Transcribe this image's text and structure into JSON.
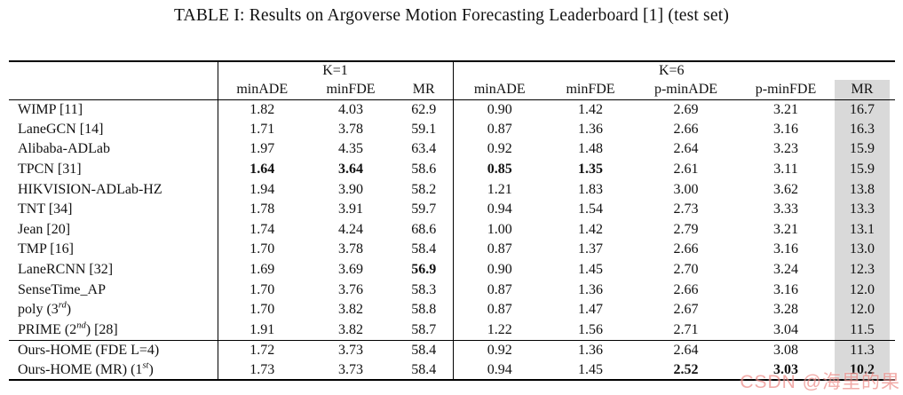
{
  "title": "TABLE I: Results on Argoverse Motion Forecasting Leaderboard [1] (test set)",
  "table": {
    "col_groups": [
      {
        "label": "",
        "span": 1
      },
      {
        "label": "K=1",
        "span": 3
      },
      {
        "label": "K=6",
        "span": 5
      }
    ],
    "columns": [
      "minADE",
      "minFDE",
      "MR",
      "minADE",
      "minFDE",
      "p-minADE",
      "p-minFDE",
      "MR"
    ],
    "highlight_column_index": 7,
    "highlight_color": "#d9d9d9",
    "section_break_index": 12,
    "rows": [
      {
        "label": "WIMP [11]",
        "values": [
          "1.82",
          "4.03",
          "62.9",
          "0.90",
          "1.42",
          "2.69",
          "3.21",
          "16.7"
        ],
        "bold_cols": []
      },
      {
        "label": "LaneGCN [14]",
        "values": [
          "1.71",
          "3.78",
          "59.1",
          "0.87",
          "1.36",
          "2.66",
          "3.16",
          "16.3"
        ],
        "bold_cols": []
      },
      {
        "label": "Alibaba-ADLab",
        "values": [
          "1.97",
          "4.35",
          "63.4",
          "0.92",
          "1.48",
          "2.64",
          "3.23",
          "15.9"
        ],
        "bold_cols": []
      },
      {
        "label": "TPCN [31]",
        "values": [
          "1.64",
          "3.64",
          "58.6",
          "0.85",
          "1.35",
          "2.61",
          "3.11",
          "15.9"
        ],
        "bold_cols": [
          0,
          1,
          3,
          4
        ]
      },
      {
        "label": "HIKVISION-ADLab-HZ",
        "values": [
          "1.94",
          "3.90",
          "58.2",
          "1.21",
          "1.83",
          "3.00",
          "3.62",
          "13.8"
        ],
        "bold_cols": []
      },
      {
        "label": "TNT [34]",
        "values": [
          "1.78",
          "3.91",
          "59.7",
          "0.94",
          "1.54",
          "2.73",
          "3.33",
          "13.3"
        ],
        "bold_cols": []
      },
      {
        "label": "Jean [20]",
        "values": [
          "1.74",
          "4.24",
          "68.6",
          "1.00",
          "1.42",
          "2.79",
          "3.21",
          "13.1"
        ],
        "bold_cols": []
      },
      {
        "label": "TMP [16]",
        "values": [
          "1.70",
          "3.78",
          "58.4",
          "0.87",
          "1.37",
          "2.66",
          "3.16",
          "13.0"
        ],
        "bold_cols": []
      },
      {
        "label": "LaneRCNN [32]",
        "values": [
          "1.69",
          "3.69",
          "56.9",
          "0.90",
          "1.45",
          "2.70",
          "3.24",
          "12.3"
        ],
        "bold_cols": [
          2
        ]
      },
      {
        "label": "SenseTime_AP",
        "values": [
          "1.70",
          "3.76",
          "58.3",
          "0.87",
          "1.36",
          "2.66",
          "3.16",
          "12.0"
        ],
        "bold_cols": []
      },
      {
        "label": [
          {
            "text": "poly (3"
          },
          {
            "text": "rd",
            "sup": true
          },
          {
            "text": ")"
          }
        ],
        "values": [
          "1.70",
          "3.82",
          "58.8",
          "0.87",
          "1.47",
          "2.67",
          "3.28",
          "12.0"
        ],
        "bold_cols": []
      },
      {
        "label": [
          {
            "text": "PRIME (2"
          },
          {
            "text": "nd",
            "sup": true
          },
          {
            "text": ") [28]"
          }
        ],
        "values": [
          "1.91",
          "3.82",
          "58.7",
          "1.22",
          "1.56",
          "2.71",
          "3.04",
          "11.5"
        ],
        "bold_cols": []
      },
      {
        "label": "Ours-HOME (FDE L=4)",
        "values": [
          "1.72",
          "3.73",
          "58.4",
          "0.92",
          "1.36",
          "2.64",
          "3.08",
          "11.3"
        ],
        "bold_cols": []
      },
      {
        "label": [
          {
            "text": "Ours-HOME (MR) (1"
          },
          {
            "text": "st",
            "sup": true
          },
          {
            "text": ")"
          }
        ],
        "values": [
          "1.73",
          "3.73",
          "58.4",
          "0.94",
          "1.45",
          "2.52",
          "3.03",
          "10.2"
        ],
        "bold_cols": [
          5,
          6,
          7
        ]
      }
    ]
  },
  "watermark": {
    "text": "CSDN @海里的果",
    "color": "#ee8d89"
  }
}
